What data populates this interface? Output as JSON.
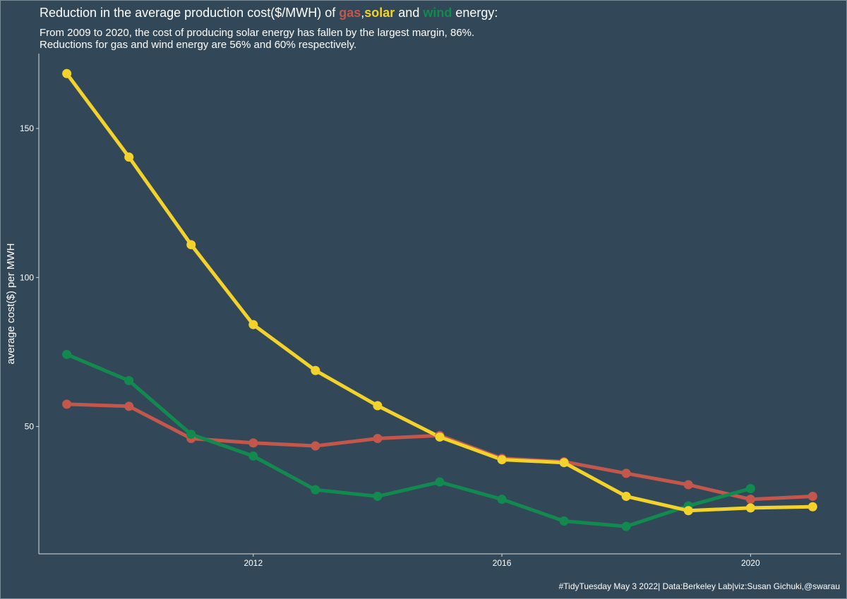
{
  "title": {
    "prefix": "Reduction in the average production cost($/MWH) of ",
    "gas": "gas",
    "comma": ",",
    "solar": "solar",
    "and": " and ",
    "wind": "wind",
    "suffix": " energy:"
  },
  "subtitle": {
    "line1": "From 2009 to 2020, the cost of producing solar energy has fallen by the largest margin, 86%.",
    "line2": "Reductions for gas and wind energy are 56% and 60% respectively."
  },
  "caption": "#TidyTuesday May 3 2022| Data:Berkeley Lab|viz:Susan Gichuki,@swarau",
  "colors": {
    "background": "#324858",
    "gas": "#c4574b",
    "solar": "#f2d22b",
    "wind": "#128a4f",
    "axis": "#d9dde0"
  },
  "chart_data": {
    "type": "line",
    "xlabel": "",
    "ylabel": "average cost($) per MWH",
    "xlim": [
      2008.55,
      2021.45
    ],
    "ylim": [
      7.3,
      175.1
    ],
    "xticks": [
      2012,
      2016,
      2020
    ],
    "yticks": [
      50,
      100,
      150
    ],
    "grid": false,
    "series": [
      {
        "name": "gas",
        "color": "#c4574b",
        "x": [
          2009,
          2010,
          2011,
          2012,
          2013,
          2014,
          2015,
          2016,
          2017,
          2018,
          2019,
          2020,
          2021
        ],
        "values": [
          57.5,
          56.8,
          46,
          44.5,
          43.5,
          46,
          47,
          39.3,
          38.2,
          34.3,
          30.5,
          25.6,
          26.6
        ]
      },
      {
        "name": "solar",
        "color": "#f2d22b",
        "x": [
          2009,
          2010,
          2011,
          2012,
          2013,
          2014,
          2015,
          2016,
          2017,
          2018,
          2019,
          2020,
          2021
        ],
        "values": [
          168.4,
          140.4,
          111,
          84.2,
          68.8,
          57,
          46.5,
          38.9,
          37.9,
          26.6,
          21.8,
          22.7,
          23.1
        ]
      },
      {
        "name": "wind",
        "color": "#128a4f",
        "x": [
          2009,
          2010,
          2011,
          2012,
          2013,
          2014,
          2015,
          2016,
          2017,
          2018,
          2019,
          2020
        ],
        "values": [
          74.2,
          65.4,
          47.4,
          40.1,
          28.8,
          26.6,
          31.4,
          25.6,
          18.3,
          16.5,
          23.4,
          29.2
        ]
      }
    ]
  }
}
